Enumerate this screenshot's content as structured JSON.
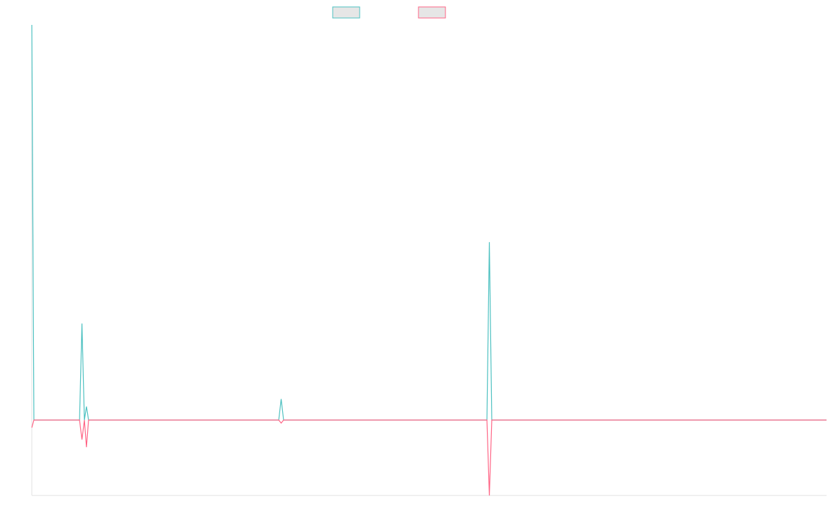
{
  "chart_data": {
    "type": "line",
    "x": [
      0,
      3,
      16,
      69,
      72.5,
      76,
      79,
      82,
      357,
      360.5,
      364,
      658,
      661.5,
      665,
      1149
    ],
    "xlim": [
      0,
      1149
    ],
    "ylim": [
      -1,
      5.24
    ],
    "series": [
      {
        "color": "#4bc0c0",
        "values": [
          5.24,
          0,
          0,
          0,
          1.28,
          0,
          0.18,
          0,
          0,
          0.28,
          0,
          0,
          2.36,
          0,
          0
        ]
      },
      {
        "color": "#ff6384",
        "values": [
          -0.1,
          0,
          0,
          0,
          -0.26,
          0,
          -0.36,
          0,
          0,
          -0.04,
          0,
          0,
          -1,
          0,
          0
        ]
      }
    ]
  }
}
